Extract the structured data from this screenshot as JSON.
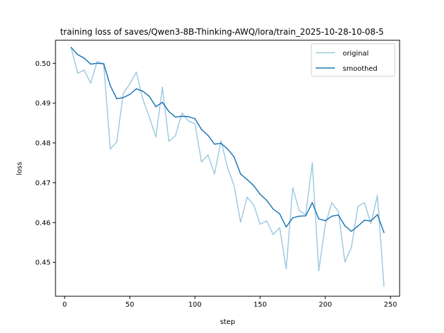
{
  "chart_data": {
    "type": "line",
    "title": "training loss of saves/Qwen3-8B-Thinking-AWQ/lora/train_2025-10-28-10-08-5",
    "xlabel": "step",
    "ylabel": "loss",
    "xlim": [
      -7,
      257
    ],
    "ylim": [
      0.4415,
      0.5058
    ],
    "xticks": [
      0,
      50,
      100,
      150,
      200,
      250
    ],
    "xtick_labels": [
      "0",
      "50",
      "100",
      "150",
      "200",
      "250"
    ],
    "yticks": [
      0.45,
      0.46,
      0.47,
      0.48,
      0.49,
      0.5
    ],
    "ytick_labels": [
      "0.45",
      "0.46",
      "0.47",
      "0.48",
      "0.49",
      "0.50"
    ],
    "legend_position": "top-right",
    "grid": false,
    "series": [
      {
        "name": "original",
        "color": "#9ecae1",
        "x": [
          5,
          10,
          15,
          20,
          25,
          30,
          35,
          40,
          45,
          50,
          55,
          60,
          65,
          70,
          75,
          80,
          85,
          90,
          95,
          100,
          105,
          110,
          115,
          120,
          125,
          130,
          135,
          140,
          145,
          150,
          155,
          160,
          165,
          170,
          175,
          180,
          185,
          190,
          195,
          200,
          205,
          210,
          215,
          220,
          225,
          230,
          235,
          240,
          245
        ],
        "values": [
          0.504,
          0.4975,
          0.4983,
          0.495,
          0.5005,
          0.4998,
          0.4785,
          0.4802,
          0.4925,
          0.4948,
          0.4978,
          0.491,
          0.4865,
          0.4815,
          0.494,
          0.4804,
          0.4818,
          0.4875,
          0.4855,
          0.4848,
          0.4752,
          0.477,
          0.4722,
          0.4806,
          0.4738,
          0.4693,
          0.4601,
          0.4664,
          0.4645,
          0.4596,
          0.4604,
          0.457,
          0.4587,
          0.4484,
          0.4687,
          0.463,
          0.462,
          0.475,
          0.4479,
          0.4595,
          0.465,
          0.4628,
          0.4501,
          0.4538,
          0.464,
          0.465,
          0.4598,
          0.4668,
          0.444
        ]
      },
      {
        "name": "smoothed",
        "color": "#1f77b4",
        "x": [
          5,
          10,
          15,
          20,
          25,
          30,
          35,
          40,
          45,
          50,
          55,
          60,
          65,
          70,
          75,
          80,
          85,
          90,
          95,
          100,
          105,
          110,
          115,
          120,
          125,
          130,
          135,
          140,
          145,
          150,
          155,
          160,
          165,
          170,
          175,
          180,
          185,
          190,
          195,
          200,
          205,
          210,
          215,
          220,
          225,
          230,
          235,
          240,
          245
        ],
        "values": [
          0.504,
          0.5022,
          0.5013,
          0.4998,
          0.5,
          0.4999,
          0.4944,
          0.4911,
          0.4914,
          0.4922,
          0.4936,
          0.493,
          0.4917,
          0.4891,
          0.4902,
          0.4879,
          0.4865,
          0.4867,
          0.4866,
          0.4861,
          0.4834,
          0.4819,
          0.4797,
          0.4799,
          0.4785,
          0.4765,
          0.4722,
          0.4708,
          0.4693,
          0.4671,
          0.4656,
          0.4634,
          0.4622,
          0.4589,
          0.4612,
          0.4616,
          0.4617,
          0.465,
          0.4609,
          0.4605,
          0.4616,
          0.4619,
          0.4592,
          0.4578,
          0.4591,
          0.4606,
          0.4604,
          0.462,
          0.4575
        ]
      }
    ]
  }
}
